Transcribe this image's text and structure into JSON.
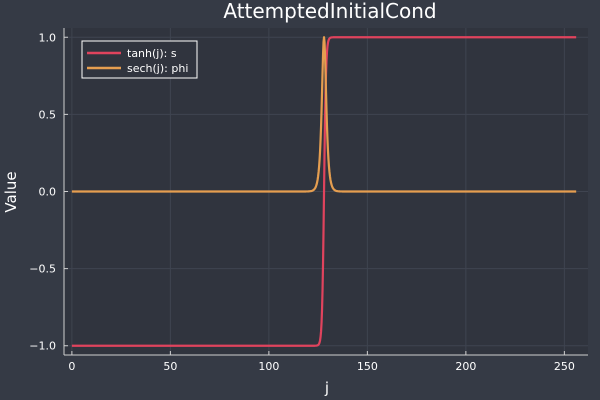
{
  "chart_data": {
    "type": "line",
    "title": "AttemptedInitialCond",
    "xlabel": "j",
    "ylabel": "Value",
    "xlim": [
      -4,
      262
    ],
    "ylim": [
      -1.06,
      1.06
    ],
    "x_ticks": [
      0,
      50,
      100,
      150,
      200,
      250
    ],
    "x_tick_labels": [
      "0",
      "50",
      "100",
      "150",
      "200",
      "250"
    ],
    "y_ticks": [
      -1.0,
      -0.5,
      0.0,
      0.5,
      1.0
    ],
    "y_tick_labels": [
      "−1.0",
      "−0.5",
      "0.0",
      "0.5",
      "1.0"
    ],
    "grid": true,
    "legend_position": "top-left",
    "colors": {
      "background": "#353a45",
      "plot_area": "#30343e",
      "grid": "#3f4450",
      "axis": "#d0d0d0",
      "legend_bg": "#30343e",
      "legend_border": "#ffffff"
    },
    "series": [
      {
        "name": "tanh(j): s",
        "color": "#e0435d",
        "function": "tanh",
        "center": 128,
        "x_start": 0,
        "x_end": 256,
        "x_step": 0.25,
        "min_value": -1.0,
        "max_value": 1.0
      },
      {
        "name": "sech(j): phi",
        "color": "#e59e50",
        "function": "sech",
        "center": 128,
        "x_start": 0,
        "x_end": 256,
        "x_step": 0.25,
        "min_value": 0.0,
        "max_value": 1.0
      }
    ]
  }
}
